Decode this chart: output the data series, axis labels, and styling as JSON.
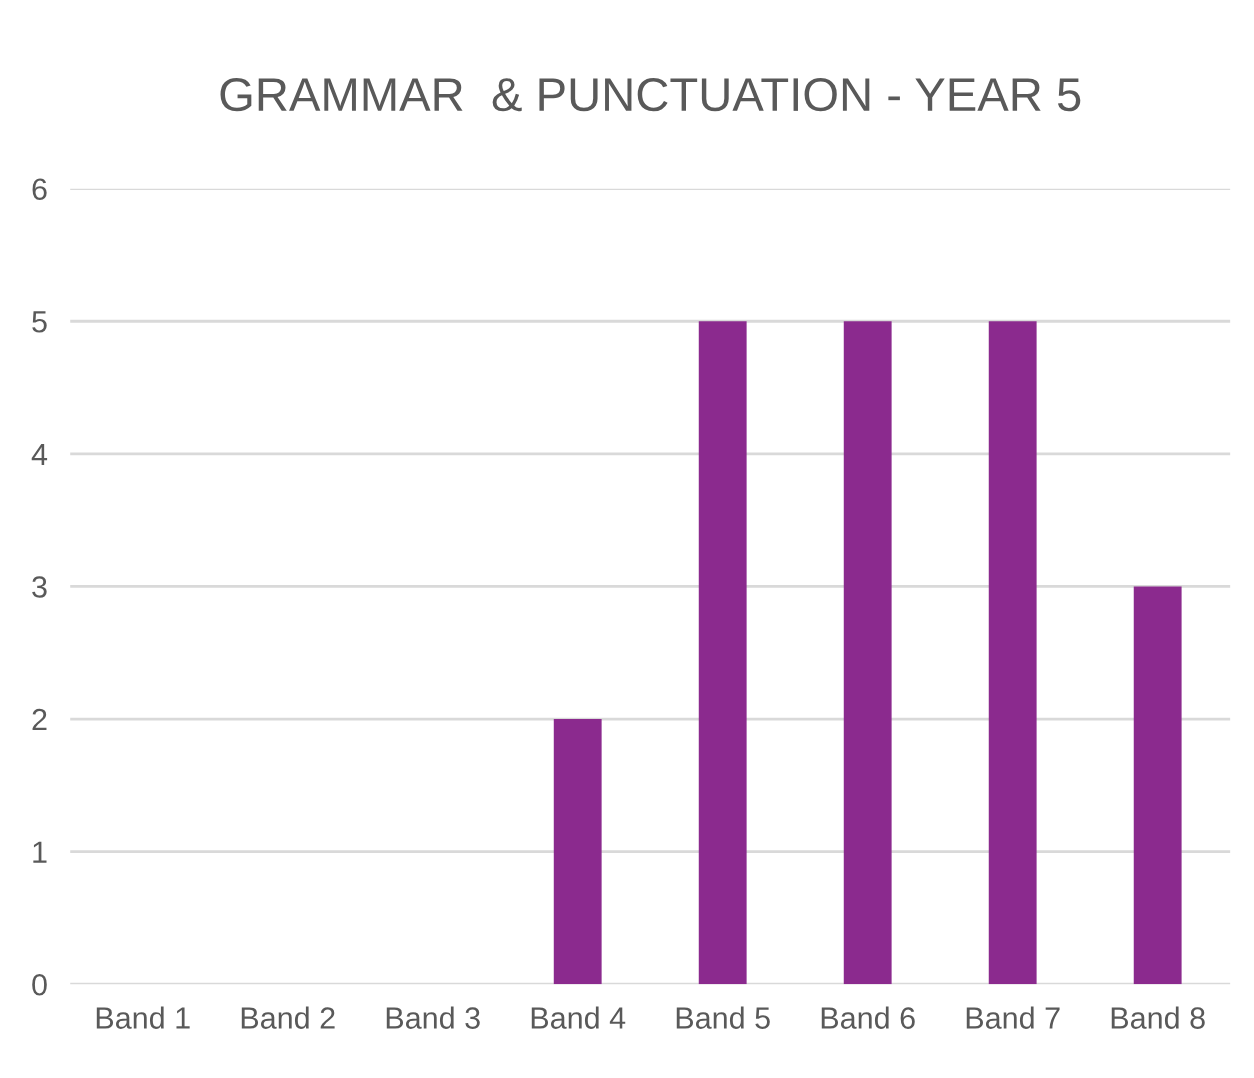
{
  "chart_data": {
    "type": "bar",
    "title": "GRAMMAR  & PUNCTUATION - YEAR 5",
    "categories": [
      "Band 1",
      "Band 2",
      "Band 3",
      "Band 4",
      "Band 5",
      "Band 6",
      "Band 7",
      "Band 8"
    ],
    "values": [
      0,
      0,
      0,
      2,
      5,
      5,
      5,
      3
    ],
    "color": "#8b2a8e",
    "ylim": [
      0,
      6
    ],
    "yticks": [
      0,
      1,
      2,
      3,
      4,
      5,
      6
    ],
    "grid": "y"
  }
}
